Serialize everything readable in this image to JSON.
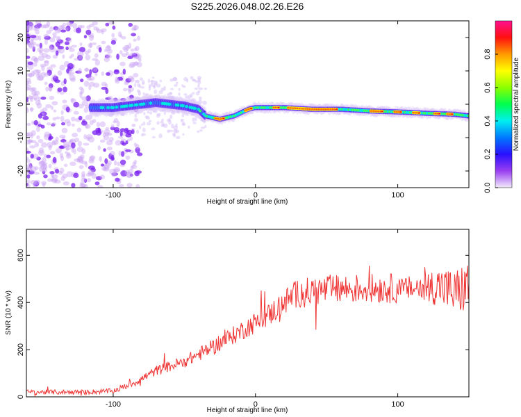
{
  "title": "S225.2026.048.02.26.E26",
  "chart_data": [
    {
      "type": "heatmap",
      "panel": "spectrogram",
      "xlabel": "Height of straight line (km)",
      "ylabel": "Frequency (Hz)",
      "xlim": [
        -161,
        150
      ],
      "ylim": [
        -25,
        25
      ],
      "xticks": [
        -100,
        0,
        100
      ],
      "yticks": [
        -20,
        -10,
        0,
        10,
        20
      ],
      "ridge": {
        "x": [
          -115,
          -100,
          -90,
          -80,
          -70,
          -60,
          -50,
          -40,
          -35,
          -25,
          -15,
          -5,
          0,
          10,
          20,
          40,
          60,
          80,
          100,
          120,
          140,
          150
        ],
        "y": [
          -1,
          -1,
          -0.5,
          0,
          0.5,
          0,
          -0.5,
          -1.5,
          -3.5,
          -4.5,
          -3.5,
          -1.5,
          -1,
          -1,
          -1,
          -1.5,
          -1.5,
          -2,
          -2.3,
          -2.7,
          -3,
          -3.5
        ]
      },
      "colorbar": {
        "label": "Normalized spectral amplitude",
        "ticks": [
          "0.0",
          "0.2",
          "0.4",
          "0.6",
          "0.8"
        ],
        "range": [
          0,
          1
        ]
      }
    },
    {
      "type": "line",
      "panel": "snr",
      "xlabel": "Height of straight line (km)",
      "ylabel": "SNR (10 * v/v)",
      "xlim": [
        -161,
        150
      ],
      "ylim": [
        0,
        710
      ],
      "xticks": [
        -100,
        0,
        100
      ],
      "yticks": [
        0,
        200,
        400,
        600
      ],
      "color": "#ef3434",
      "trend": {
        "x": [
          -161,
          -120,
          -100,
          -85,
          -70,
          -50,
          -30,
          -10,
          10,
          20,
          30,
          50,
          80,
          110,
          130,
          140,
          150
        ],
        "y": [
          20,
          20,
          25,
          60,
          110,
          150,
          210,
          280,
          350,
          400,
          440,
          455,
          460,
          460,
          470,
          440,
          470
        ]
      }
    }
  ]
}
